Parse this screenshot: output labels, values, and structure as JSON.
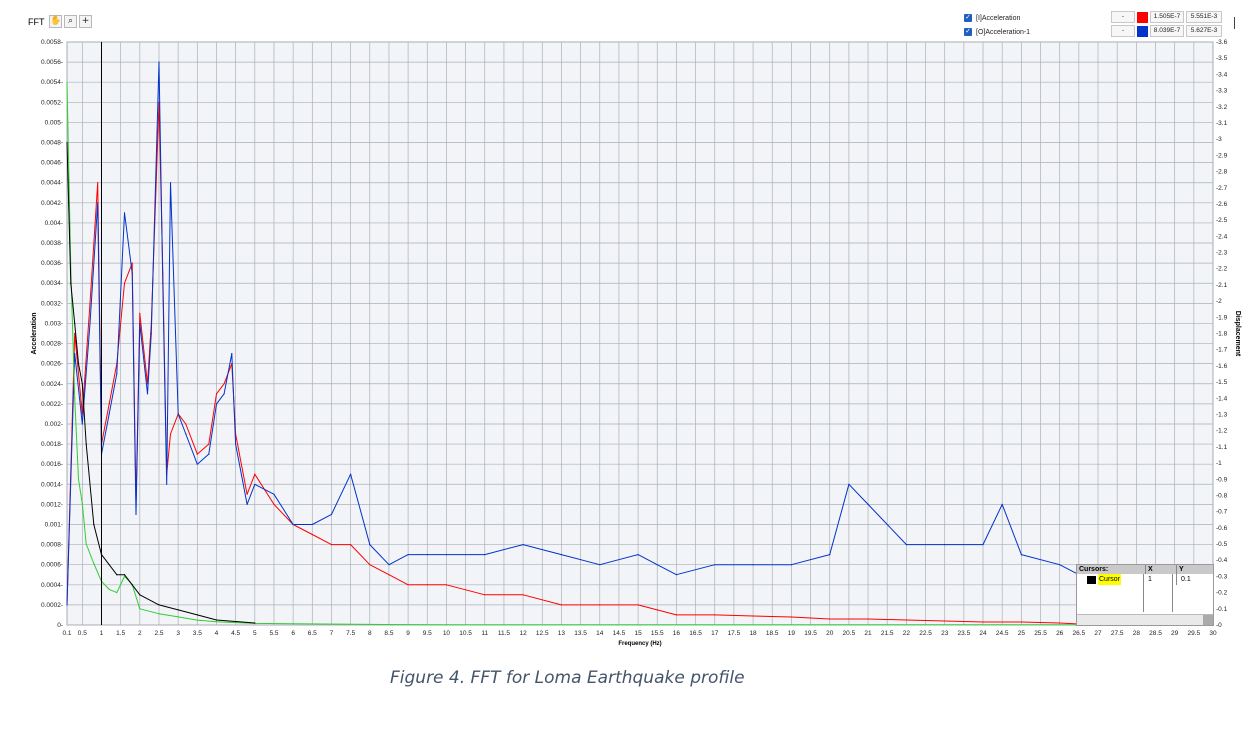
{
  "graph": {
    "label": "FFT"
  },
  "palette": {
    "tools": [
      "hand-tool-icon",
      "zoom-tool-icon",
      "crosshair-tool-icon"
    ],
    "glyphs": [
      "✋",
      "⌕",
      "+"
    ]
  },
  "legend": [
    {
      "name": "[I]Acceleration",
      "color": "#ff0000",
      "min": "1.505E-7",
      "max": "5.551E-3",
      "btn": "-"
    },
    {
      "name": "[O]Acceleration-1",
      "color": "#0033cc",
      "min": "8.039E-7",
      "max": "5.627E-3",
      "btn": "-"
    }
  ],
  "cursors": {
    "title": "Cursors:",
    "x_header": "X",
    "y_header": "Y",
    "items": [
      {
        "name": "Cursor",
        "x": "1",
        "y": "0.1"
      }
    ]
  },
  "caption": "Figure 4. FFT for Loma Earthquake profile",
  "chart_data": {
    "type": "line",
    "xlabel": "Frequency (Hz)",
    "ylabel": "Acceleration",
    "y2label": "Displacement",
    "xlim": [
      0.1,
      30
    ],
    "ylim": [
      0,
      0.0058
    ],
    "y2lim": [
      0,
      3.6
    ],
    "grid": true,
    "legend_position": "top-right",
    "x_ticks": [
      "0.1",
      "0.5",
      "1",
      "1.5",
      "2",
      "2.5",
      "3",
      "3.5",
      "4",
      "4.5",
      "5",
      "5.5",
      "6",
      "6.5",
      "7",
      "7.5",
      "8",
      "8.5",
      "9",
      "9.5",
      "10",
      "10.5",
      "11",
      "11.5",
      "12",
      "12.5",
      "13",
      "13.5",
      "14",
      "14.5",
      "15",
      "15.5",
      "16",
      "16.5",
      "17",
      "17.5",
      "18",
      "18.5",
      "19",
      "19.5",
      "20",
      "20.5",
      "21",
      "21.5",
      "22",
      "22.5",
      "23",
      "23.5",
      "24",
      "24.5",
      "25",
      "25.5",
      "26",
      "26.5",
      "27",
      "27.5",
      "28",
      "28.5",
      "29",
      "29.5",
      "30"
    ],
    "y_ticks": [
      "0",
      "0.0002",
      "0.0004",
      "0.0006",
      "0.0008",
      "0.001",
      "0.0012",
      "0.0014",
      "0.0016",
      "0.0018",
      "0.002",
      "0.0022",
      "0.0024",
      "0.0026",
      "0.0028",
      "0.003",
      "0.0032",
      "0.0034",
      "0.0036",
      "0.0038",
      "0.004",
      "0.0042",
      "0.0044",
      "0.0046",
      "0.0048",
      "0.005",
      "0.0052",
      "0.0054",
      "0.0056",
      "0.0058"
    ],
    "y2_ticks": [
      "0",
      "0.1",
      "0.2",
      "0.3",
      "0.4",
      "0.5",
      "0.6",
      "0.7",
      "0.8",
      "0.9",
      "1",
      "1.1",
      "1.2",
      "1.3",
      "1.4",
      "1.5",
      "1.6",
      "1.7",
      "1.8",
      "1.9",
      "2",
      "2.1",
      "2.2",
      "2.3",
      "2.4",
      "2.5",
      "2.6",
      "2.7",
      "2.8",
      "2.9",
      "3",
      "3.1",
      "3.2",
      "3.3",
      "3.4",
      "3.5",
      "3.6"
    ],
    "cursor_x": 1,
    "series": [
      {
        "name": "[I]Acceleration",
        "color": "#ff0000",
        "axis": "left",
        "x": [
          0.1,
          0.3,
          0.5,
          0.7,
          0.9,
          1.0,
          1.2,
          1.4,
          1.6,
          1.8,
          1.9,
          2.0,
          2.2,
          2.3,
          2.5,
          2.6,
          2.7,
          2.8,
          3.0,
          3.2,
          3.5,
          3.8,
          4.0,
          4.2,
          4.4,
          4.5,
          4.8,
          5.0,
          5.5,
          6.0,
          6.5,
          7.0,
          7.5,
          8.0,
          8.5,
          9.0,
          9.5,
          10,
          11,
          12,
          13,
          14,
          15,
          15.5,
          16,
          17,
          18,
          19,
          20,
          21,
          22,
          23,
          24,
          25,
          26,
          26.5
        ],
        "y": [
          0.0002,
          0.0029,
          0.0021,
          0.0032,
          0.0044,
          0.0018,
          0.0022,
          0.0026,
          0.0034,
          0.0036,
          0.0012,
          0.0031,
          0.0024,
          0.003,
          0.0052,
          0.0035,
          0.0015,
          0.0019,
          0.0021,
          0.002,
          0.0017,
          0.0018,
          0.0023,
          0.0024,
          0.0026,
          0.0019,
          0.0013,
          0.0015,
          0.0012,
          0.001,
          0.0009,
          0.0008,
          0.0008,
          0.0006,
          0.0005,
          0.0004,
          0.0004,
          0.0004,
          0.0003,
          0.0003,
          0.0002,
          0.0002,
          0.0002,
          0.00015,
          0.0001,
          0.0001,
          9e-05,
          8e-05,
          6e-05,
          6e-05,
          5e-05,
          4e-05,
          3e-05,
          3e-05,
          2e-05,
          1e-05
        ]
      },
      {
        "name": "[O]Acceleration-1",
        "color": "#0033cc",
        "axis": "left",
        "x": [
          0.1,
          0.3,
          0.5,
          0.7,
          0.9,
          1.0,
          1.2,
          1.4,
          1.6,
          1.8,
          1.9,
          2.0,
          2.2,
          2.3,
          2.5,
          2.6,
          2.7,
          2.8,
          3.0,
          3.2,
          3.5,
          3.8,
          4.0,
          4.2,
          4.4,
          4.5,
          4.8,
          5.0,
          5.5,
          6.0,
          6.5,
          7.0,
          7.5,
          8.0,
          8.5,
          9.0,
          9.5,
          10,
          11,
          12,
          13,
          14,
          15,
          15.5,
          16,
          17,
          18,
          19,
          20,
          20.5,
          21,
          22,
          23,
          24,
          24.5,
          25,
          26,
          26.5
        ],
        "y": [
          0.0002,
          0.0027,
          0.002,
          0.003,
          0.0042,
          0.0017,
          0.0021,
          0.0025,
          0.0041,
          0.0035,
          0.0011,
          0.003,
          0.0023,
          0.0029,
          0.0056,
          0.0034,
          0.0014,
          0.0044,
          0.0021,
          0.0019,
          0.0016,
          0.0017,
          0.0022,
          0.0023,
          0.0027,
          0.0018,
          0.0012,
          0.0014,
          0.0013,
          0.001,
          0.001,
          0.0011,
          0.0015,
          0.0008,
          0.0006,
          0.0007,
          0.0007,
          0.0007,
          0.0007,
          0.0008,
          0.0007,
          0.0006,
          0.0007,
          0.0006,
          0.0005,
          0.0006,
          0.0006,
          0.0006,
          0.0007,
          0.0014,
          0.0012,
          0.0008,
          0.0008,
          0.0008,
          0.0012,
          0.0007,
          0.0006,
          0.0005
        ]
      },
      {
        "name": "Displacement",
        "color": "#33cc33",
        "axis": "right",
        "x": [
          0.1,
          0.2,
          0.3,
          0.4,
          0.5,
          0.6,
          0.8,
          1.0,
          1.2,
          1.4,
          1.6,
          1.8,
          2.0,
          2.5,
          3.0,
          3.5,
          4.0,
          5.0,
          6.0,
          8.0,
          10,
          30
        ],
        "y": [
          3.35,
          2.2,
          1.4,
          0.9,
          0.75,
          0.5,
          0.38,
          0.27,
          0.22,
          0.2,
          0.3,
          0.25,
          0.1,
          0.07,
          0.05,
          0.03,
          0.02,
          0.01,
          0.008,
          0.004,
          0.002,
          0.001
        ]
      },
      {
        "name": "Black",
        "color": "#000000",
        "axis": "left",
        "x": [
          0.1,
          0.2,
          0.3,
          0.4,
          0.5,
          0.6,
          0.8,
          1.0,
          1.2,
          1.4,
          1.6,
          1.8,
          2.0,
          2.5,
          3.0,
          3.5,
          4.0,
          5.0
        ],
        "y": [
          0.0048,
          0.0034,
          0.003,
          0.0026,
          0.0024,
          0.0018,
          0.001,
          0.0007,
          0.0006,
          0.0005,
          0.0005,
          0.0004,
          0.0003,
          0.0002,
          0.00015,
          0.0001,
          5e-05,
          2e-05
        ]
      }
    ]
  }
}
